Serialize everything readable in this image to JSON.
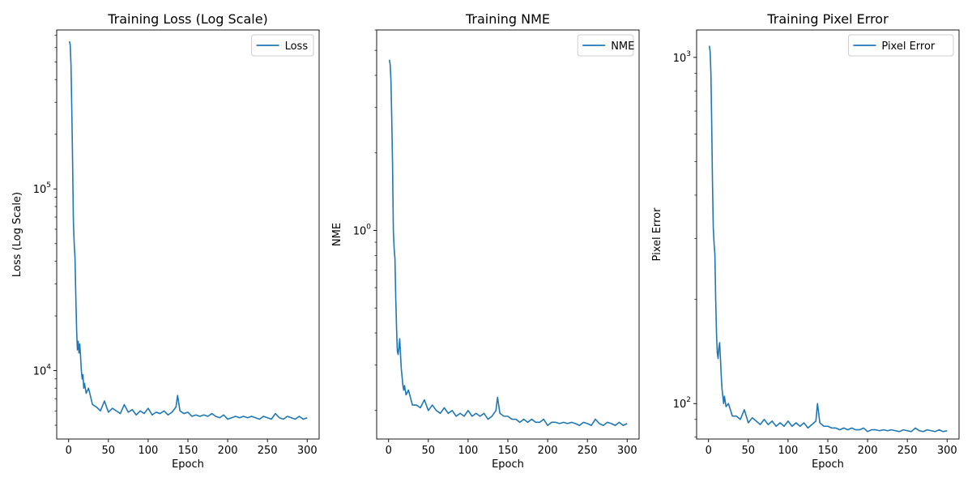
{
  "chart_data": [
    {
      "type": "line",
      "title": "Training Loss (Log Scale)",
      "xlabel": "Epoch",
      "ylabel": "Loss (Log Scale)",
      "xlim": [
        -15,
        315
      ],
      "xticks": [
        0,
        50,
        100,
        150,
        200,
        250,
        300
      ],
      "yscale": "log",
      "ylim": [
        4200,
        750000
      ],
      "yticks_major": [
        {
          "value": 10000,
          "base": "10",
          "exp": "4"
        },
        {
          "value": 100000,
          "base": "10",
          "exp": "5"
        }
      ],
      "legend": {
        "position": "upper right"
      },
      "color": "#1f77b4",
      "series": [
        {
          "name": "Loss",
          "x": [
            1,
            2,
            3,
            4,
            5,
            6,
            7,
            8,
            9,
            10,
            11,
            12,
            13,
            14,
            15,
            16,
            17,
            18,
            19,
            20,
            22,
            25,
            30,
            35,
            40,
            45,
            50,
            55,
            60,
            65,
            70,
            75,
            80,
            85,
            90,
            95,
            100,
            105,
            110,
            115,
            120,
            125,
            130,
            135,
            137,
            140,
            145,
            150,
            155,
            160,
            165,
            170,
            175,
            180,
            185,
            190,
            195,
            200,
            205,
            210,
            215,
            220,
            225,
            230,
            235,
            240,
            245,
            250,
            255,
            260,
            265,
            270,
            275,
            280,
            285,
            290,
            295,
            300
          ],
          "y": [
            650000,
            620000,
            480000,
            270000,
            140000,
            66000,
            50000,
            42000,
            26000,
            17000,
            13000,
            14500,
            12500,
            14000,
            12000,
            10000,
            9000,
            9500,
            8000,
            8500,
            7500,
            8000,
            6500,
            6300,
            6000,
            6800,
            5900,
            6200,
            6000,
            5800,
            6500,
            5900,
            6100,
            5700,
            6000,
            5800,
            6200,
            5700,
            5900,
            5800,
            6000,
            5700,
            5900,
            6300,
            7300,
            6000,
            5800,
            5900,
            5600,
            5700,
            5600,
            5700,
            5600,
            5800,
            5600,
            5500,
            5700,
            5400,
            5500,
            5600,
            5500,
            5600,
            5500,
            5600,
            5500,
            5400,
            5600,
            5500,
            5400,
            5800,
            5500,
            5400,
            5600,
            5500,
            5400,
            5600,
            5400,
            5500
          ]
        }
      ]
    },
    {
      "type": "line",
      "title": "Training NME",
      "xlabel": "Epoch",
      "ylabel": "NME",
      "xlim": [
        -15,
        315
      ],
      "xticks": [
        0,
        50,
        100,
        150,
        200,
        250,
        300
      ],
      "yscale": "log",
      "ylim": [
        0.155,
        6.0
      ],
      "yticks_major": [
        {
          "value": 1,
          "base": "10",
          "exp": "0"
        }
      ],
      "legend": {
        "position": "upper right"
      },
      "color": "#1f77b4",
      "series": [
        {
          "name": "NME",
          "x": [
            1,
            2,
            3,
            4,
            5,
            6,
            7,
            8,
            9,
            10,
            11,
            12,
            13,
            14,
            15,
            16,
            17,
            18,
            19,
            20,
            22,
            25,
            30,
            35,
            40,
            45,
            50,
            55,
            60,
            65,
            70,
            75,
            80,
            85,
            90,
            95,
            100,
            105,
            110,
            115,
            120,
            125,
            130,
            135,
            137,
            140,
            145,
            150,
            155,
            160,
            165,
            170,
            175,
            180,
            185,
            190,
            195,
            200,
            205,
            210,
            215,
            220,
            225,
            230,
            235,
            240,
            245,
            250,
            255,
            260,
            265,
            270,
            275,
            280,
            285,
            290,
            295,
            300
          ],
          "y": [
            4.6,
            4.4,
            3.8,
            2.7,
            1.8,
            1.0,
            0.85,
            0.78,
            0.55,
            0.42,
            0.34,
            0.33,
            0.35,
            0.38,
            0.33,
            0.29,
            0.27,
            0.25,
            0.24,
            0.25,
            0.23,
            0.24,
            0.21,
            0.21,
            0.205,
            0.22,
            0.2,
            0.21,
            0.2,
            0.195,
            0.205,
            0.195,
            0.2,
            0.19,
            0.195,
            0.19,
            0.2,
            0.19,
            0.195,
            0.19,
            0.195,
            0.185,
            0.19,
            0.2,
            0.225,
            0.195,
            0.19,
            0.19,
            0.185,
            0.185,
            0.18,
            0.185,
            0.18,
            0.185,
            0.18,
            0.18,
            0.185,
            0.175,
            0.18,
            0.18,
            0.178,
            0.18,
            0.178,
            0.18,
            0.178,
            0.175,
            0.18,
            0.178,
            0.175,
            0.185,
            0.178,
            0.175,
            0.18,
            0.178,
            0.175,
            0.18,
            0.175,
            0.178
          ]
        }
      ]
    },
    {
      "type": "line",
      "title": "Training Pixel Error",
      "xlabel": "Epoch",
      "ylabel": "Pixel Error",
      "xlim": [
        -15,
        315
      ],
      "xticks": [
        0,
        50,
        100,
        150,
        200,
        250,
        300
      ],
      "yscale": "log",
      "ylim": [
        79,
        1200
      ],
      "yticks_major": [
        {
          "value": 100,
          "base": "10",
          "exp": "2"
        },
        {
          "value": 1000,
          "base": "10",
          "exp": "3"
        }
      ],
      "legend": {
        "position": "upper right"
      },
      "color": "#1f77b4",
      "series": [
        {
          "name": "Pixel Error",
          "x": [
            1,
            2,
            3,
            4,
            5,
            6,
            7,
            8,
            9,
            10,
            11,
            12,
            13,
            14,
            15,
            16,
            17,
            18,
            19,
            20,
            22,
            25,
            30,
            35,
            40,
            45,
            50,
            55,
            60,
            65,
            70,
            75,
            80,
            85,
            90,
            95,
            100,
            105,
            110,
            115,
            120,
            125,
            130,
            135,
            137,
            140,
            145,
            150,
            155,
            160,
            165,
            170,
            175,
            180,
            185,
            190,
            195,
            200,
            205,
            210,
            215,
            220,
            225,
            230,
            235,
            240,
            245,
            250,
            255,
            260,
            265,
            270,
            275,
            280,
            285,
            290,
            295,
            300
          ],
          "y": [
            1080,
            1040,
            900,
            640,
            430,
            320,
            290,
            270,
            200,
            160,
            140,
            135,
            145,
            150,
            135,
            120,
            110,
            105,
            100,
            105,
            98,
            100,
            92,
            92,
            90,
            96,
            88,
            91,
            89,
            87,
            90,
            87,
            89,
            86,
            88,
            86,
            89,
            86,
            88,
            86,
            88,
            85,
            87,
            89,
            100,
            88,
            86,
            86,
            85,
            85,
            84,
            85,
            84,
            85,
            84,
            84,
            85,
            83,
            84,
            84,
            83.5,
            84,
            83.5,
            84,
            83.5,
            83,
            84,
            83.5,
            83,
            85,
            83.5,
            83,
            84,
            83.5,
            83,
            84,
            83,
            83.5
          ]
        }
      ]
    }
  ]
}
